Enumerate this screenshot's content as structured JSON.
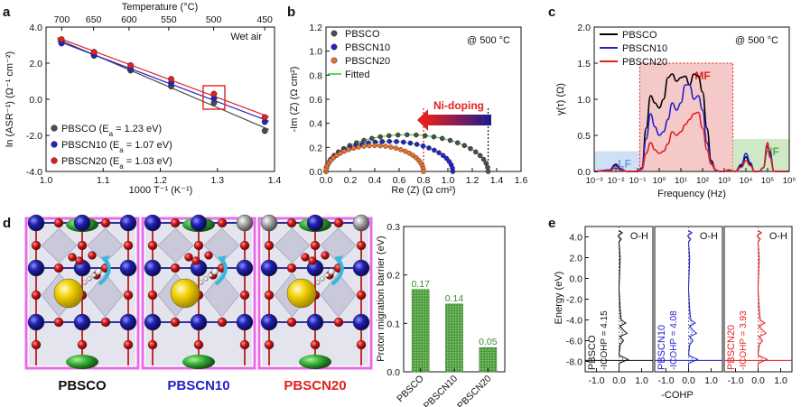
{
  "panel_letters": [
    "a",
    "b",
    "c",
    "d",
    "e"
  ],
  "chart_data": [
    {
      "panel": "a",
      "type": "scatter",
      "xlabel": "1000 T⁻¹ (K⁻¹)",
      "ylabel": "ln (ASR⁻¹) (Ω⁻¹ cm⁻²)",
      "top_axis_label": "Temperature (°C)",
      "top_ticks": [
        "700",
        "650",
        "600",
        "550",
        "500",
        "450"
      ],
      "top_tick_temps_c": [
        700,
        650,
        600,
        550,
        500,
        450
      ],
      "xlim": [
        1.0,
        1.4
      ],
      "ylim": [
        -4.0,
        4.0
      ],
      "xticks": [
        "1.0",
        "1.1",
        "1.2",
        "1.3",
        "1.4"
      ],
      "yticks": [
        "-4.0",
        "-2.0",
        "0.0",
        "2.0",
        "4.0"
      ],
      "annotation": "Wet air",
      "legend_position": "bottom-left",
      "series": [
        {
          "name": "PBSCO (E",
          "name_sub": "a",
          "name_tail": " = 1.23 eV)",
          "color": "#4d4d4d",
          "x": [
            1.027,
            1.084,
            1.148,
            1.219,
            1.294,
            1.383
          ],
          "y": [
            3.2,
            2.42,
            1.6,
            0.72,
            -0.2,
            -1.75
          ]
        },
        {
          "name": "PBSCN10 (E",
          "name_sub": "a",
          "name_tail": " = 1.07 eV)",
          "color": "#2323c8",
          "x": [
            1.027,
            1.084,
            1.148,
            1.219,
            1.294,
            1.383
          ],
          "y": [
            3.1,
            2.45,
            1.7,
            0.9,
            0.05,
            -1.25
          ]
        },
        {
          "name": "PBSCN20 (E",
          "name_sub": "a",
          "name_tail": " = 1.03 eV)",
          "color": "#e02020",
          "x": [
            1.027,
            1.084,
            1.148,
            1.219,
            1.294,
            1.383
          ],
          "y": [
            3.32,
            2.62,
            1.88,
            1.12,
            0.3,
            -1.0
          ]
        }
      ],
      "highlight_box": {
        "x": [
          1.275,
          1.313
        ],
        "y": [
          -0.55,
          0.75
        ],
        "color": "#e02020"
      }
    },
    {
      "panel": "b",
      "type": "scatter",
      "xlabel": "Re (Z) (Ω cm²)",
      "ylabel": "-Im (Z) (Ω cm²)",
      "xlim": [
        0.0,
        1.6
      ],
      "ylim": [
        0.0,
        1.2
      ],
      "xticks": [
        "0.0",
        "0.2",
        "0.4",
        "0.6",
        "0.8",
        "1.0",
        "1.2",
        "1.4",
        "1.6"
      ],
      "yticks": [
        "0.0",
        "0.2",
        "0.4",
        "0.6",
        "0.8",
        "1.0",
        "1.2"
      ],
      "annotation": "@ 500 °C",
      "arrow_label": "Ni-doping",
      "legend_position": "top-left",
      "series": [
        {
          "name": "PBSCO",
          "color": "#4d4d4d",
          "arc": [
            0.0,
            1.33,
            0.305
          ]
        },
        {
          "name": "PBSCN10",
          "color": "#2323c8",
          "arc": [
            0.0,
            1.04,
            0.25
          ]
        },
        {
          "name": "PBSCN20",
          "color": "#e87030",
          "arc": [
            0.0,
            0.8,
            0.215
          ]
        },
        {
          "name": "Fitted",
          "color": "#22cc22"
        }
      ],
      "dotted_markers_x": [
        0.8,
        1.33
      ]
    },
    {
      "panel": "c",
      "type": "line",
      "xlabel": "Frequency (Hz)",
      "ylabel": "γ(τ) (Ω)",
      "xlim_log10": [
        -3,
        6
      ],
      "ylim": [
        0.0,
        2.0
      ],
      "xticks": [
        "10⁻³",
        "10⁻²",
        "10⁻¹",
        "10⁰",
        "10¹",
        "10²",
        "10³",
        "10⁴",
        "10⁵",
        "10⁶"
      ],
      "yticks": [
        "0.0",
        "0.5",
        "1.0",
        "1.5",
        "2.0"
      ],
      "annotation": "@ 500 °C",
      "regions": [
        {
          "label": "LF",
          "color": "#cfe0f5",
          "text_color": "#6a9ed8",
          "x_log10": [
            -3,
            -0.9
          ],
          "top": 0.28
        },
        {
          "label": "MF",
          "color": "#f6c9c9",
          "text_color": "#e02020",
          "x_log10": [
            -0.9,
            3.4
          ],
          "top": 1.5
        },
        {
          "label": "HF",
          "color": "#cfe8c6",
          "text_color": "#55b03c",
          "x_log10": [
            3.4,
            6
          ],
          "top": 0.45
        }
      ],
      "legend_position": "top-left",
      "series": [
        {
          "name": "PBSCO",
          "color": "#000000",
          "x_log10": [
            -3,
            -2.3,
            -2.0,
            -1.8,
            -1.5,
            -1.2,
            -1.0,
            -0.8,
            -0.6,
            -0.4,
            -0.2,
            0.0,
            0.2,
            0.4,
            0.6,
            0.8,
            1.0,
            1.2,
            1.4,
            1.6,
            1.8,
            2.0,
            2.2,
            2.4,
            2.6,
            2.8,
            3.0,
            3.2,
            3.5,
            3.8,
            4.0,
            4.2,
            4.4,
            4.6,
            4.8,
            5.0,
            5.1,
            5.3,
            5.6,
            6.0
          ],
          "y": [
            0,
            0.02,
            0.1,
            0.04,
            0.0,
            0.0,
            0.0,
            0.05,
            0.6,
            1.05,
            0.95,
            0.88,
            1.0,
            1.3,
            1.35,
            1.25,
            1.3,
            1.32,
            1.2,
            1.35,
            1.32,
            1.1,
            0.6,
            0.15,
            0.02,
            0.0,
            0.0,
            0.02,
            0.0,
            0.08,
            0.2,
            0.1,
            0.0,
            0.0,
            0.05,
            0.35,
            0.25,
            0.0,
            0.0,
            0.0
          ]
        },
        {
          "name": "PBSCN10",
          "color": "#2323c8",
          "x_log10": [
            -3,
            -2.3,
            -2.0,
            -1.8,
            -1.5,
            -1.2,
            -1.0,
            -0.8,
            -0.6,
            -0.4,
            -0.2,
            0.0,
            0.2,
            0.4,
            0.6,
            0.8,
            1.0,
            1.2,
            1.4,
            1.6,
            1.8,
            2.0,
            2.2,
            2.4,
            2.6,
            2.8,
            3.0,
            3.2,
            3.5,
            3.8,
            4.0,
            4.2,
            4.4,
            4.6,
            4.8,
            5.0,
            5.1,
            5.3,
            5.6,
            6.0
          ],
          "y": [
            0,
            0.02,
            0.08,
            0.04,
            0.0,
            0.0,
            0.0,
            0.05,
            0.45,
            0.8,
            0.62,
            0.5,
            0.55,
            0.72,
            0.95,
            0.85,
            0.95,
            1.2,
            1.2,
            1.0,
            1.05,
            0.85,
            0.4,
            0.12,
            0.02,
            0.0,
            0.0,
            0.02,
            0.0,
            0.1,
            0.25,
            0.12,
            0.0,
            0.0,
            0.05,
            0.35,
            0.28,
            0.0,
            0.0,
            0.0
          ]
        },
        {
          "name": "PBSCN20",
          "color": "#e02020",
          "x_log10": [
            -3,
            -2.3,
            -2.0,
            -1.8,
            -1.5,
            -1.2,
            -1.0,
            -0.8,
            -0.6,
            -0.4,
            -0.2,
            0.0,
            0.2,
            0.4,
            0.6,
            0.8,
            1.0,
            1.2,
            1.4,
            1.6,
            1.8,
            2.0,
            2.2,
            2.4,
            2.6,
            2.8,
            3.0,
            3.2,
            3.5,
            3.8,
            4.0,
            4.2,
            4.4,
            4.6,
            4.8,
            5.0,
            5.1,
            5.3,
            5.6,
            6.0
          ],
          "y": [
            0,
            0.01,
            0.05,
            0.02,
            0.0,
            0.0,
            0.0,
            0.03,
            0.25,
            0.4,
            0.3,
            0.25,
            0.28,
            0.38,
            0.55,
            0.5,
            0.55,
            0.65,
            0.72,
            0.8,
            0.82,
            0.6,
            0.3,
            0.1,
            0.02,
            0.0,
            0.0,
            0.02,
            0.0,
            0.06,
            0.15,
            0.08,
            0.0,
            0.0,
            0.05,
            0.4,
            0.2,
            0.0,
            0.0,
            0.0
          ]
        }
      ]
    },
    {
      "panel": "d",
      "type": "bar",
      "ylabel": "Proton migration barrier (eV)",
      "ylim": [
        0.0,
        0.3
      ],
      "yticks": [
        "0.0",
        "0.1",
        "0.2",
        "0.3"
      ],
      "categories": [
        "PBSCO",
        "PBSCN10",
        "PBSCN20"
      ],
      "values": [
        0.17,
        0.14,
        0.05
      ],
      "value_labels": [
        "0.17",
        "0.14",
        "0.05"
      ],
      "bar_color": "#5aa64a",
      "label_color": "#3c8a30"
    },
    {
      "panel": "e",
      "type": "line",
      "ylabel": "Energy (eV)",
      "xlabel": "-COHP",
      "ylim": [
        -9.0,
        5.0
      ],
      "yticks": [
        "4.0",
        "2.0",
        "0.0",
        "-2.0",
        "-4.0",
        "-6.0",
        "-8.0"
      ],
      "xticks": [
        "-1.0",
        "0.0",
        "1.0"
      ],
      "subplots": [
        {
          "name": "PBSCO",
          "color": "#111111",
          "bond": "O-H",
          "icohp": "-ICOHP = 4.15"
        },
        {
          "name": "PBSCN10",
          "color": "#2323c8",
          "bond": "O-H",
          "icohp": "-ICOHP = 4.08"
        },
        {
          "name": "PBSCN20",
          "color": "#e02020",
          "bond": "O-H",
          "icohp": "-ICOHP = 3.93"
        }
      ]
    }
  ],
  "structure_labels": [
    {
      "text": "PBSCO",
      "color": "#111111"
    },
    {
      "text": "PBSCN10",
      "color": "#2323c8"
    },
    {
      "text": "PBSCN20",
      "color": "#e02020"
    }
  ]
}
